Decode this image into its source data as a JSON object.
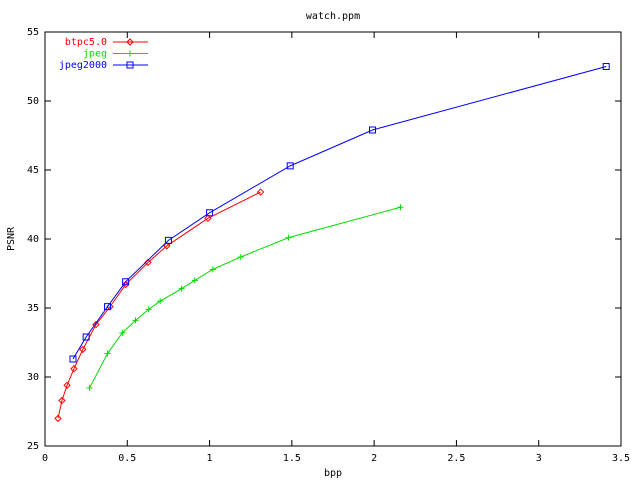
{
  "chart_data": {
    "type": "line",
    "title": "watch.ppm",
    "x_label": "bpp",
    "y_label": "PSNR",
    "xlim": [
      0,
      3.5
    ],
    "xticks": [
      0,
      0.5,
      1,
      1.5,
      2,
      2.5,
      3,
      3.5
    ],
    "ylim": [
      25,
      55
    ],
    "yticks": [
      25,
      30,
      35,
      40,
      45,
      50,
      55
    ],
    "grid": false,
    "legend": "top-left",
    "series": [
      {
        "name": "btpc5.0",
        "color": "#ff0000",
        "marker": "diamond",
        "x": [
          0.079,
          0.103,
          0.134,
          0.176,
          0.23,
          0.31,
          0.395,
          0.49,
          0.626,
          0.74,
          0.99,
          1.31
        ],
        "values": [
          27.0,
          28.3,
          29.4,
          30.6,
          32.0,
          33.8,
          35.1,
          36.7,
          38.3,
          39.5,
          41.5,
          43.4
        ]
      },
      {
        "name": "jpeg",
        "color": "#00dd00",
        "marker": "plus",
        "x": [
          0.27,
          0.38,
          0.47,
          0.55,
          0.63,
          0.7,
          0.83,
          0.91,
          1.02,
          1.19,
          1.48,
          2.16
        ],
        "values": [
          29.2,
          31.7,
          33.2,
          34.1,
          34.9,
          35.5,
          36.4,
          37.0,
          37.8,
          38.7,
          40.1,
          42.3
        ]
      },
      {
        "name": "jpeg2000",
        "color": "#0000ff",
        "marker": "square",
        "x": [
          0.17,
          0.25,
          0.38,
          0.49,
          0.75,
          1.0,
          1.49,
          1.99,
          3.41
        ],
        "values": [
          31.3,
          32.9,
          35.1,
          36.9,
          39.9,
          41.9,
          45.3,
          47.9,
          52.5
        ]
      }
    ]
  }
}
